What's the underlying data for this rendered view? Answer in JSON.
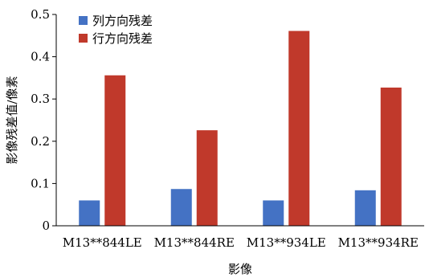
{
  "chart_data": {
    "type": "bar",
    "categories": [
      "M13**844LE",
      "M13**844RE",
      "M13**934LE",
      "M13**934RE"
    ],
    "series": [
      {
        "name": "列方向残差",
        "color": "#4472c4",
        "values": [
          0.06,
          0.087,
          0.06,
          0.084
        ]
      },
      {
        "name": "行方向残差",
        "color": "#c0392b",
        "values": [
          0.356,
          0.226,
          0.461,
          0.327
        ]
      }
    ],
    "xlabel": "影像",
    "ylabel": "影像残差值/像素",
    "ylim": [
      0,
      0.5
    ],
    "yticks": [
      "0",
      "0.1",
      "0.2",
      "0.3",
      "0.4",
      "0.5"
    ],
    "grid": false,
    "legend": "top-left"
  }
}
